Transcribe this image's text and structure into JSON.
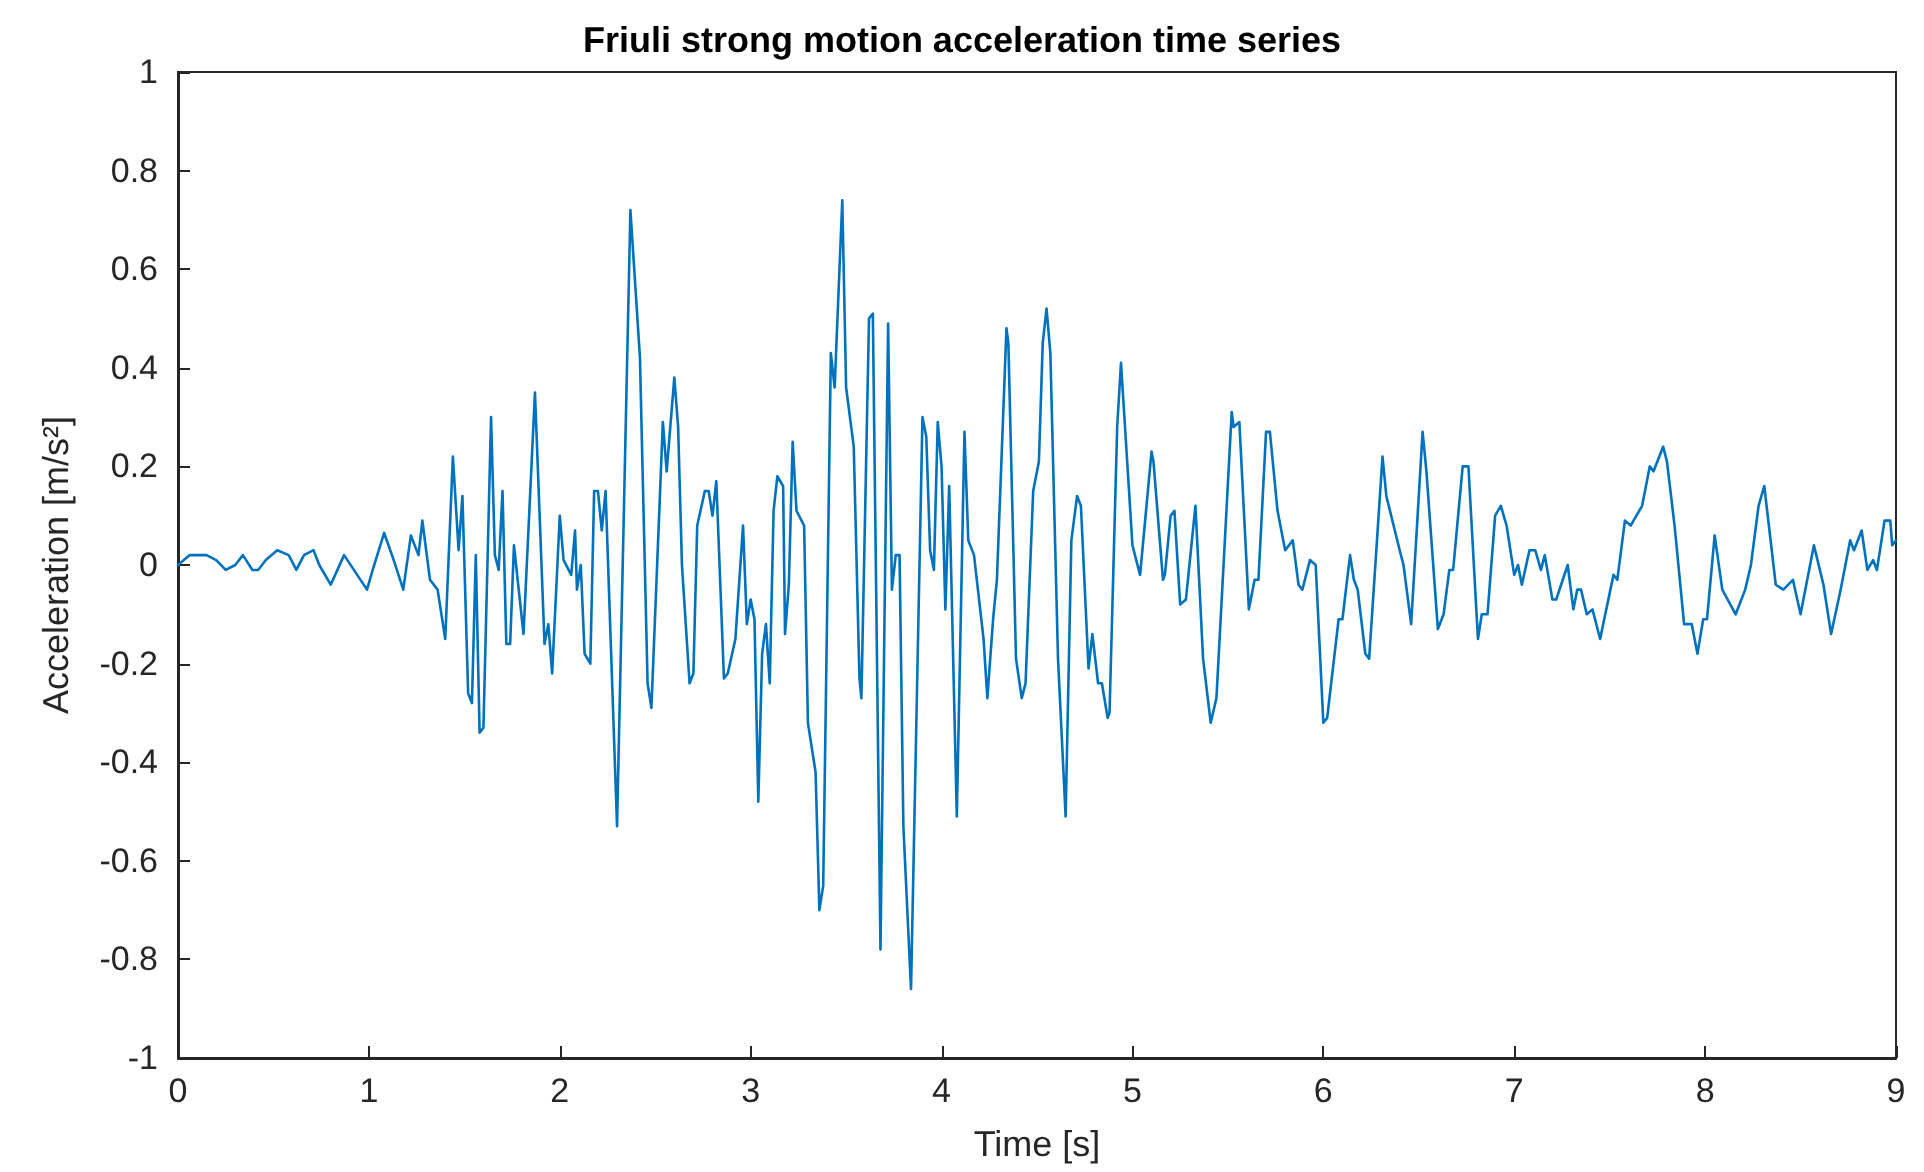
{
  "chart_data": {
    "type": "line",
    "title": "Friuli strong motion acceleration time series",
    "xlabel": "Time [s]",
    "ylabel": "Acceleration [m/s²]",
    "xlim": [
      0,
      9
    ],
    "xticks": [
      0,
      1,
      2,
      3,
      4,
      5,
      6,
      7,
      8,
      9
    ],
    "ylim": [
      -1,
      1
    ],
    "yticks": [
      -1,
      -0.8,
      -0.6,
      -0.4,
      -0.2,
      0,
      0.2,
      0.4,
      0.6,
      0.8,
      1
    ],
    "grid": false,
    "marker": "none",
    "line_style": "solid",
    "series": [
      {
        "color": "#0072bd",
        "x": [
          0,
          0.06,
          0.1,
          0.15,
          0.2,
          0.25,
          0.3,
          0.34,
          0.39,
          0.42,
          0.46,
          0.52,
          0.58,
          0.62,
          0.66,
          0.71,
          0.74,
          0.8,
          0.87,
          0.99,
          1.02,
          1.08,
          1.13,
          1.18,
          1.22,
          1.26,
          1.28,
          1.32,
          1.36,
          1.4,
          1.44,
          1.47,
          1.49,
          1.52,
          1.54,
          1.56,
          1.58,
          1.6,
          1.64,
          1.66,
          1.68,
          1.7,
          1.72,
          1.74,
          1.76,
          1.81,
          1.87,
          1.92,
          1.94,
          1.96,
          2,
          2.02,
          2.06,
          2.08,
          2.09,
          2.11,
          2.13,
          2.16,
          2.18,
          2.2,
          2.22,
          2.24,
          2.3,
          2.37,
          2.42,
          2.46,
          2.48,
          2.54,
          2.56,
          2.6,
          2.62,
          2.64,
          2.68,
          2.7,
          2.72,
          2.76,
          2.78,
          2.8,
          2.82,
          2.86,
          2.88,
          2.92,
          2.96,
          2.98,
          3,
          3.02,
          3.04,
          3.06,
          3.08,
          3.1,
          3.12,
          3.14,
          3.17,
          3.18,
          3.2,
          3.22,
          3.24,
          3.28,
          3.3,
          3.34,
          3.36,
          3.38,
          3.42,
          3.44,
          3.48,
          3.5,
          3.54,
          3.57,
          3.58,
          3.62,
          3.64,
          3.68,
          3.72,
          3.74,
          3.76,
          3.78,
          3.8,
          3.84,
          3.9,
          3.92,
          3.94,
          3.96,
          3.98,
          4,
          4.02,
          4.04,
          4.08,
          4.12,
          4.14,
          4.17,
          4.22,
          4.24,
          4.27,
          4.29,
          4.34,
          4.35,
          4.39,
          4.42,
          4.44,
          4.48,
          4.51,
          4.53,
          4.55,
          4.57,
          4.61,
          4.65,
          4.68,
          4.71,
          4.73,
          4.77,
          4.79,
          4.82,
          4.84,
          4.87,
          4.88,
          4.92,
          4.94,
          5,
          5.02,
          5.04,
          5.1,
          5.11,
          5.16,
          5.17,
          5.2,
          5.22,
          5.25,
          5.28,
          5.33,
          5.37,
          5.41,
          5.44,
          5.52,
          5.53,
          5.56,
          5.61,
          5.64,
          5.66,
          5.7,
          5.72,
          5.76,
          5.8,
          5.84,
          5.87,
          5.89,
          5.93,
          5.96,
          6,
          6.02,
          6.08,
          6.1,
          6.14,
          6.16,
          6.18,
          6.22,
          6.24,
          6.31,
          6.33,
          6.4,
          6.42,
          6.46,
          6.52,
          6.54,
          6.6,
          6.63,
          6.66,
          6.68,
          6.73,
          6.76,
          6.81,
          6.83,
          6.86,
          6.9,
          6.93,
          6.96,
          7,
          7.02,
          7.04,
          7.08,
          7.11,
          7.14,
          7.16,
          7.2,
          7.22,
          7.28,
          7.31,
          7.33,
          7.35,
          7.38,
          7.41,
          7.45,
          7.52,
          7.54,
          7.58,
          7.61,
          7.64,
          7.67,
          7.71,
          7.73,
          7.78,
          7.8,
          7.84,
          7.89,
          7.93,
          7.96,
          7.99,
          8.01,
          8.05,
          8.09,
          8.16,
          8.21,
          8.24,
          8.28,
          8.31,
          8.37,
          8.41,
          8.46,
          8.5,
          8.57,
          8.62,
          8.66,
          8.71,
          8.76,
          8.78,
          8.82,
          8.85,
          8.88,
          8.9,
          8.94,
          8.97,
          8.98,
          9
        ],
        "values": [
          0,
          0.02,
          0.02,
          0.02,
          0.01,
          -0.01,
          0,
          0.02,
          -0.01,
          -0.01,
          0.01,
          0.03,
          0.02,
          -0.01,
          0.02,
          0.03,
          0,
          -0.04,
          0.02,
          -0.05,
          -0.01,
          0.065,
          0.01,
          -0.05,
          0.06,
          0.02,
          0.09,
          -0.03,
          -0.05,
          -0.15,
          0.22,
          0.03,
          0.14,
          -0.26,
          -0.28,
          0.02,
          -0.34,
          -0.33,
          0.3,
          0.02,
          -0.01,
          0.15,
          -0.16,
          -0.16,
          0.04,
          -0.14,
          0.35,
          -0.16,
          -0.12,
          -0.22,
          0.1,
          0.01,
          -0.02,
          0.07,
          -0.05,
          0,
          -0.18,
          -0.2,
          0.15,
          0.15,
          0.07,
          0.15,
          -0.53,
          0.72,
          0.42,
          -0.24,
          -0.29,
          0.29,
          0.19,
          0.38,
          0.28,
          0,
          -0.24,
          -0.22,
          0.08,
          0.15,
          0.15,
          0.1,
          0.17,
          -0.23,
          -0.22,
          -0.15,
          0.08,
          -0.12,
          -0.07,
          -0.11,
          -0.48,
          -0.18,
          -0.12,
          -0.24,
          0.11,
          0.18,
          0.16,
          -0.14,
          -0.04,
          0.25,
          0.11,
          0.08,
          -0.32,
          -0.42,
          -0.7,
          -0.65,
          0.43,
          0.36,
          0.74,
          0.36,
          0.24,
          -0.23,
          -0.27,
          0.5,
          0.51,
          -0.78,
          0.49,
          -0.05,
          0.02,
          0.02,
          -0.53,
          -0.86,
          0.3,
          0.26,
          0.03,
          -0.01,
          0.29,
          0.2,
          -0.09,
          0.16,
          -0.51,
          0.27,
          0.05,
          0.02,
          -0.15,
          -0.27,
          -0.11,
          -0.03,
          0.48,
          0.45,
          -0.19,
          -0.27,
          -0.24,
          0.15,
          0.21,
          0.45,
          0.52,
          0.43,
          -0.19,
          -0.51,
          0.05,
          0.14,
          0.12,
          -0.21,
          -0.14,
          -0.24,
          -0.24,
          -0.31,
          -0.3,
          0.28,
          0.41,
          0.04,
          0.01,
          -0.02,
          0.23,
          0.21,
          -0.03,
          -0.02,
          0.1,
          0.11,
          -0.08,
          -0.07,
          0.12,
          -0.19,
          -0.32,
          -0.27,
          0.31,
          0.28,
          0.29,
          -0.09,
          -0.03,
          -0.03,
          0.27,
          0.27,
          0.11,
          0.03,
          0.05,
          -0.04,
          -0.05,
          0.01,
          0,
          -0.32,
          -0.31,
          -0.11,
          -0.11,
          0.02,
          -0.03,
          -0.05,
          -0.18,
          -0.19,
          0.22,
          0.14,
          0.03,
          0,
          -0.12,
          0.27,
          0.19,
          -0.13,
          -0.1,
          -0.01,
          -0.01,
          0.2,
          0.2,
          -0.15,
          -0.1,
          -0.1,
          0.1,
          0.12,
          0.08,
          -0.02,
          0,
          -0.04,
          0.03,
          0.03,
          -0.01,
          0.02,
          -0.07,
          -0.07,
          0,
          -0.09,
          -0.05,
          -0.05,
          -0.1,
          -0.09,
          -0.15,
          -0.02,
          -0.03,
          0.09,
          0.08,
          0.1,
          0.12,
          0.2,
          0.19,
          0.24,
          0.21,
          0.08,
          -0.12,
          -0.12,
          -0.18,
          -0.11,
          -0.11,
          0.06,
          -0.05,
          -0.1,
          -0.05,
          0,
          0.12,
          0.16,
          -0.04,
          -0.05,
          -0.03,
          -0.1,
          0.04,
          -0.04,
          -0.14,
          -0.05,
          0.05,
          0.03,
          0.07,
          -0.01,
          0.01,
          -0.01,
          0.09,
          0.09,
          0.04,
          0.05
        ]
      }
    ]
  }
}
